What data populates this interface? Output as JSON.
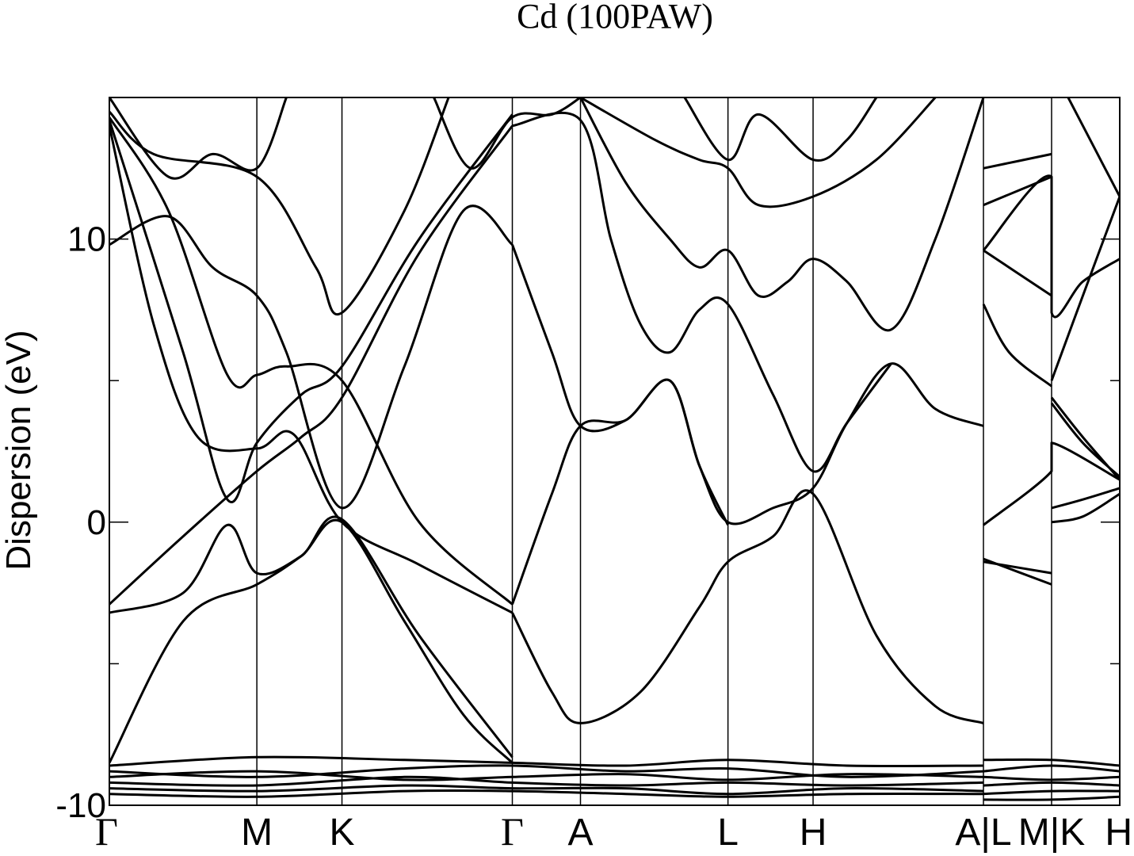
{
  "chart_data": {
    "type": "line",
    "title": "Cd (100PAW)",
    "ylabel": "Dispersion (eV)",
    "xlabel": "",
    "ylim": [
      -10,
      15
    ],
    "yticks": [
      -10,
      0,
      10
    ],
    "yminor": [
      -5,
      5
    ],
    "grid": false,
    "legend": "none",
    "kpoints": [
      {
        "label": "Γ",
        "x": 0.0
      },
      {
        "label": "M",
        "x": 1.0
      },
      {
        "label": "K",
        "x": 1.577
      },
      {
        "label": "Γ",
        "x": 2.732
      },
      {
        "label": "A",
        "x": 3.194
      },
      {
        "label": "L",
        "x": 4.194
      },
      {
        "label": "H",
        "x": 4.771
      },
      {
        "label": "A|L",
        "x": 5.926
      },
      {
        "label": "M|K",
        "x": 6.388
      },
      {
        "label": "H",
        "x": 6.85
      }
    ],
    "series": [
      {
        "values": [
          [
            0,
            -8.5
          ],
          [
            0.5,
            -3.5
          ],
          [
            1,
            -2.2
          ],
          [
            1.3,
            -1.2
          ],
          [
            1.577,
            0.0
          ],
          [
            2.0,
            -3.5
          ],
          [
            2.4,
            -6.8
          ],
          [
            2.732,
            -8.5
          ]
        ]
      },
      {
        "values": [
          [
            0,
            -3.2
          ],
          [
            0.5,
            -2.5
          ],
          [
            0.8,
            -0.1
          ],
          [
            1,
            -1.8
          ],
          [
            1.3,
            -1.2
          ],
          [
            1.577,
            0.1
          ],
          [
            2.1,
            -4.0
          ],
          [
            2.732,
            -8.3
          ]
        ]
      },
      {
        "values": [
          [
            0,
            -2.9
          ],
          [
            0.5,
            -0.5
          ],
          [
            1,
            1.8
          ],
          [
            1.3,
            3.0
          ],
          [
            1.577,
            4.4
          ],
          [
            2.1,
            9.5
          ],
          [
            2.732,
            14.0
          ]
        ]
      },
      {
        "values": [
          [
            0,
            9.8
          ],
          [
            0.4,
            10.8
          ],
          [
            0.7,
            9.0
          ],
          [
            1,
            8.0
          ],
          [
            1.2,
            6.0
          ],
          [
            1.577,
            0.5
          ],
          [
            2.0,
            5.5
          ],
          [
            2.4,
            11.0
          ],
          [
            2.732,
            9.8
          ]
        ]
      },
      {
        "values": [
          [
            0,
            14.0
          ],
          [
            0.3,
            7.0
          ],
          [
            0.6,
            3.0
          ],
          [
            1,
            2.6
          ],
          [
            1.25,
            3.1
          ],
          [
            1.577,
            0.0
          ],
          [
            2.1,
            -1.5
          ],
          [
            2.732,
            -3.2
          ]
        ]
      },
      {
        "values": [
          [
            0,
            14.2
          ],
          [
            0.5,
            6.0
          ],
          [
            0.8,
            0.8
          ],
          [
            1,
            2.8
          ],
          [
            1.3,
            4.5
          ],
          [
            1.577,
            5.5
          ],
          [
            2.1,
            10.0
          ],
          [
            2.732,
            14.4
          ]
        ]
      },
      {
        "values": [
          [
            0,
            14.3
          ],
          [
            0.4,
            11.0
          ],
          [
            0.8,
            5.2
          ],
          [
            1,
            5.2
          ],
          [
            1.2,
            5.5
          ],
          [
            1.577,
            5.0
          ],
          [
            2.1,
            0.0
          ],
          [
            2.732,
            -2.9
          ]
        ]
      },
      {
        "values": [
          [
            0,
            14.5
          ],
          [
            0.3,
            13.0
          ],
          [
            1,
            12.2
          ],
          [
            1.4,
            9.0
          ],
          [
            1.577,
            7.4
          ],
          [
            2.0,
            11.0
          ],
          [
            2.3,
            15.0
          ]
        ]
      },
      {
        "values": [
          [
            0,
            15.0
          ],
          [
            0.4,
            12.2
          ],
          [
            0.7,
            13.0
          ],
          [
            1,
            12.5
          ],
          [
            1.2,
            15.0
          ]
        ]
      },
      {
        "values": [
          [
            2.2,
            15.0
          ],
          [
            2.45,
            12.5
          ],
          [
            2.732,
            14.3
          ],
          [
            3.0,
            14.4
          ],
          [
            3.194,
            15.0
          ]
        ]
      },
      {
        "values": [
          [
            2.732,
            -3.2
          ],
          [
            3.0,
            -6.0
          ],
          [
            3.194,
            -7.1
          ],
          [
            3.6,
            -6.0
          ],
          [
            4.0,
            -3.0
          ],
          [
            4.194,
            -1.4
          ],
          [
            4.5,
            -0.5
          ],
          [
            4.771,
            1.0
          ],
          [
            5.2,
            -4.0
          ],
          [
            5.6,
            -6.5
          ],
          [
            5.926,
            -7.1
          ]
        ]
      },
      {
        "values": [
          [
            2.732,
            -2.9
          ],
          [
            3.0,
            1.0
          ],
          [
            3.194,
            3.4
          ],
          [
            3.5,
            3.6
          ],
          [
            3.8,
            5.0
          ],
          [
            4.0,
            2.0
          ],
          [
            4.194,
            0.0
          ],
          [
            4.5,
            0.5
          ],
          [
            4.771,
            1.2
          ],
          [
            5.0,
            3.5
          ],
          [
            5.3,
            5.6
          ],
          [
            5.6,
            4.0
          ],
          [
            5.926,
            3.4
          ]
        ]
      },
      {
        "values": [
          [
            2.732,
            9.8
          ],
          [
            3.0,
            6.0
          ],
          [
            3.194,
            3.4
          ],
          [
            3.5,
            3.6
          ],
          [
            3.8,
            5.0
          ],
          [
            4.0,
            2.0
          ],
          [
            4.194,
            -0.1
          ]
        ]
      },
      {
        "values": [
          [
            2.732,
            14.0
          ],
          [
            3.194,
            14.2
          ],
          [
            3.4,
            10.0
          ],
          [
            3.6,
            7.0
          ],
          [
            3.8,
            6.0
          ],
          [
            4.0,
            7.5
          ],
          [
            4.194,
            7.7
          ],
          [
            4.5,
            4.5
          ],
          [
            4.771,
            1.8
          ],
          [
            5.0,
            3.5
          ],
          [
            5.3,
            5.6
          ]
        ]
      },
      {
        "values": [
          [
            3.194,
            15.0
          ],
          [
            3.5,
            12.0
          ],
          [
            3.8,
            10.0
          ],
          [
            4.0,
            9.0
          ],
          [
            4.194,
            9.6
          ],
          [
            4.4,
            8.0
          ],
          [
            4.6,
            8.5
          ],
          [
            4.771,
            9.3
          ],
          [
            5.0,
            8.5
          ],
          [
            5.3,
            6.8
          ],
          [
            5.6,
            10.0
          ],
          [
            5.926,
            15.0
          ]
        ]
      },
      {
        "values": [
          [
            3.194,
            15.0
          ],
          [
            3.7,
            13.5
          ],
          [
            4.0,
            12.8
          ],
          [
            4.194,
            12.5
          ],
          [
            4.4,
            11.2
          ],
          [
            4.771,
            11.5
          ],
          [
            5.2,
            12.8
          ],
          [
            5.6,
            15.0
          ]
        ]
      },
      {
        "values": [
          [
            3.9,
            15.0
          ],
          [
            4.194,
            12.8
          ],
          [
            4.4,
            14.4
          ],
          [
            4.771,
            12.8
          ],
          [
            5.0,
            13.5
          ],
          [
            5.2,
            15.0
          ]
        ]
      },
      {
        "values": [
          [
            0,
            -8.6
          ],
          [
            1,
            -8.3
          ],
          [
            2,
            -8.4
          ],
          [
            2.732,
            -8.5
          ],
          [
            3.5,
            -8.6
          ],
          [
            4.194,
            -8.4
          ],
          [
            5,
            -8.6
          ],
          [
            5.926,
            -8.6
          ]
        ]
      },
      {
        "values": [
          [
            0,
            -8.8
          ],
          [
            1,
            -9.0
          ],
          [
            2,
            -8.7
          ],
          [
            2.732,
            -8.6
          ],
          [
            3.5,
            -8.8
          ],
          [
            4.194,
            -8.7
          ],
          [
            5,
            -9.0
          ],
          [
            5.926,
            -8.8
          ]
        ]
      },
      {
        "values": [
          [
            0,
            -9.0
          ],
          [
            1,
            -8.8
          ],
          [
            2,
            -9.1
          ],
          [
            2.732,
            -9.0
          ],
          [
            3.5,
            -8.9
          ],
          [
            4.194,
            -9.1
          ],
          [
            5,
            -8.9
          ],
          [
            5.926,
            -9.0
          ]
        ]
      },
      {
        "values": [
          [
            0,
            -9.2
          ],
          [
            1,
            -9.3
          ],
          [
            2,
            -9.0
          ],
          [
            2.732,
            -9.2
          ],
          [
            3.5,
            -9.3
          ],
          [
            4.194,
            -9.2
          ],
          [
            5,
            -9.3
          ],
          [
            5.926,
            -9.2
          ]
        ]
      },
      {
        "values": [
          [
            0,
            -9.4
          ],
          [
            1,
            -9.5
          ],
          [
            2,
            -9.3
          ],
          [
            2.732,
            -9.4
          ],
          [
            3.5,
            -9.4
          ],
          [
            4.194,
            -9.6
          ],
          [
            5,
            -9.4
          ],
          [
            5.926,
            -9.5
          ]
        ]
      },
      {
        "values": [
          [
            0,
            -9.6
          ],
          [
            1,
            -9.7
          ],
          [
            2,
            -9.5
          ],
          [
            2.732,
            -9.5
          ],
          [
            3.5,
            -9.6
          ],
          [
            4.194,
            -9.7
          ],
          [
            5,
            -9.6
          ],
          [
            5.926,
            -9.6
          ]
        ]
      },
      {
        "values": [
          [
            5.926,
            -0.1
          ],
          [
            6.388,
            1.8
          ],
          [
            6.388,
            2.8
          ],
          [
            6.85,
            1.5
          ]
        ]
      },
      {
        "values": [
          [
            5.926,
            -1.4
          ],
          [
            6.388,
            -1.8
          ]
        ]
      },
      {
        "values": [
          [
            5.926,
            -1.3
          ],
          [
            6.388,
            -2.2
          ]
        ]
      },
      {
        "values": [
          [
            5.926,
            7.7
          ],
          [
            6.1,
            6.0
          ],
          [
            6.388,
            4.8
          ]
        ]
      },
      {
        "values": [
          [
            5.926,
            9.6
          ],
          [
            6.388,
            8.0
          ]
        ]
      },
      {
        "values": [
          [
            5.926,
            11.2
          ],
          [
            6.388,
            12.2
          ]
        ]
      },
      {
        "values": [
          [
            5.926,
            12.5
          ],
          [
            6.388,
            13.0
          ]
        ]
      },
      {
        "values": [
          [
            5.926,
            9.6
          ],
          [
            6.388,
            12.2
          ],
          [
            6.388,
            7.4
          ],
          [
            6.6,
            8.5
          ],
          [
            6.85,
            9.3
          ]
        ]
      },
      {
        "values": [
          [
            6.388,
            0.5
          ],
          [
            6.6,
            0.8
          ],
          [
            6.85,
            1.2
          ]
        ]
      },
      {
        "values": [
          [
            6.388,
            0.0
          ],
          [
            6.6,
            0.2
          ],
          [
            6.85,
            1.0
          ]
        ]
      },
      {
        "values": [
          [
            6.388,
            5.0
          ],
          [
            6.6,
            8.0
          ],
          [
            6.85,
            11.5
          ]
        ]
      },
      {
        "values": [
          [
            6.388,
            4.4
          ],
          [
            6.6,
            3.0
          ],
          [
            6.85,
            1.5
          ]
        ]
      },
      {
        "values": [
          [
            6.388,
            4.2
          ],
          [
            6.6,
            2.8
          ],
          [
            6.85,
            1.6
          ]
        ]
      },
      {
        "values": [
          [
            6.5,
            15.0
          ],
          [
            6.7,
            13.0
          ],
          [
            6.85,
            11.5
          ]
        ]
      },
      {
        "values": [
          [
            5.926,
            -8.4
          ],
          [
            6.388,
            -8.4
          ],
          [
            6.85,
            -8.6
          ]
        ]
      },
      {
        "values": [
          [
            5.926,
            -8.8
          ],
          [
            6.388,
            -8.6
          ],
          [
            6.85,
            -8.8
          ]
        ]
      },
      {
        "values": [
          [
            5.926,
            -9.0
          ],
          [
            6.388,
            -9.1
          ],
          [
            6.85,
            -9.0
          ]
        ]
      },
      {
        "values": [
          [
            5.926,
            -9.3
          ],
          [
            6.388,
            -9.2
          ],
          [
            6.85,
            -9.3
          ]
        ]
      },
      {
        "values": [
          [
            5.926,
            -9.6
          ],
          [
            6.388,
            -9.5
          ],
          [
            6.85,
            -9.5
          ]
        ]
      },
      {
        "values": [
          [
            5.926,
            -9.8
          ],
          [
            6.388,
            -9.8
          ],
          [
            6.85,
            -9.7
          ]
        ]
      }
    ]
  }
}
